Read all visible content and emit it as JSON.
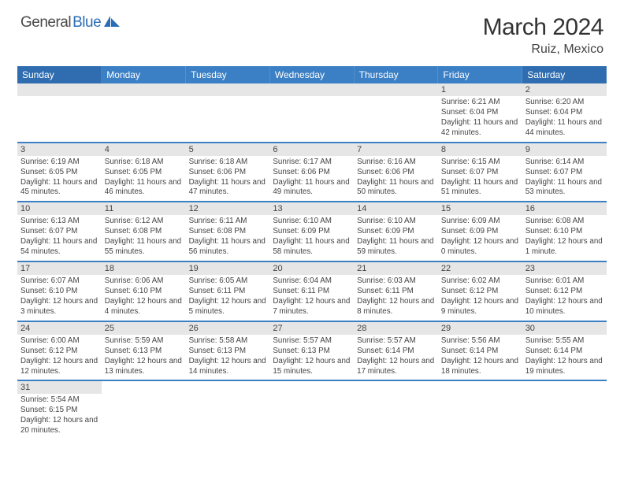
{
  "logo": {
    "part1": "General",
    "part2": "Blue"
  },
  "title": "March 2024",
  "location": "Ruiz, Mexico",
  "colors": {
    "header_bg": "#3b7fc4",
    "header_bg_weekend": "#2f6db0",
    "header_text": "#ffffff",
    "daynum_bg": "#e6e6e6",
    "row_border": "#3b7fc4",
    "text": "#444444",
    "logo_blue": "#2a6cb5"
  },
  "weekdays": [
    "Sunday",
    "Monday",
    "Tuesday",
    "Wednesday",
    "Thursday",
    "Friday",
    "Saturday"
  ],
  "weeks": [
    [
      null,
      null,
      null,
      null,
      null,
      {
        "n": "1",
        "sr": "6:21 AM",
        "ss": "6:04 PM",
        "dl": "11 hours and 42 minutes."
      },
      {
        "n": "2",
        "sr": "6:20 AM",
        "ss": "6:04 PM",
        "dl": "11 hours and 44 minutes."
      }
    ],
    [
      {
        "n": "3",
        "sr": "6:19 AM",
        "ss": "6:05 PM",
        "dl": "11 hours and 45 minutes."
      },
      {
        "n": "4",
        "sr": "6:18 AM",
        "ss": "6:05 PM",
        "dl": "11 hours and 46 minutes."
      },
      {
        "n": "5",
        "sr": "6:18 AM",
        "ss": "6:06 PM",
        "dl": "11 hours and 47 minutes."
      },
      {
        "n": "6",
        "sr": "6:17 AM",
        "ss": "6:06 PM",
        "dl": "11 hours and 49 minutes."
      },
      {
        "n": "7",
        "sr": "6:16 AM",
        "ss": "6:06 PM",
        "dl": "11 hours and 50 minutes."
      },
      {
        "n": "8",
        "sr": "6:15 AM",
        "ss": "6:07 PM",
        "dl": "11 hours and 51 minutes."
      },
      {
        "n": "9",
        "sr": "6:14 AM",
        "ss": "6:07 PM",
        "dl": "11 hours and 53 minutes."
      }
    ],
    [
      {
        "n": "10",
        "sr": "6:13 AM",
        "ss": "6:07 PM",
        "dl": "11 hours and 54 minutes."
      },
      {
        "n": "11",
        "sr": "6:12 AM",
        "ss": "6:08 PM",
        "dl": "11 hours and 55 minutes."
      },
      {
        "n": "12",
        "sr": "6:11 AM",
        "ss": "6:08 PM",
        "dl": "11 hours and 56 minutes."
      },
      {
        "n": "13",
        "sr": "6:10 AM",
        "ss": "6:09 PM",
        "dl": "11 hours and 58 minutes."
      },
      {
        "n": "14",
        "sr": "6:10 AM",
        "ss": "6:09 PM",
        "dl": "11 hours and 59 minutes."
      },
      {
        "n": "15",
        "sr": "6:09 AM",
        "ss": "6:09 PM",
        "dl": "12 hours and 0 minutes."
      },
      {
        "n": "16",
        "sr": "6:08 AM",
        "ss": "6:10 PM",
        "dl": "12 hours and 1 minute."
      }
    ],
    [
      {
        "n": "17",
        "sr": "6:07 AM",
        "ss": "6:10 PM",
        "dl": "12 hours and 3 minutes."
      },
      {
        "n": "18",
        "sr": "6:06 AM",
        "ss": "6:10 PM",
        "dl": "12 hours and 4 minutes."
      },
      {
        "n": "19",
        "sr": "6:05 AM",
        "ss": "6:11 PM",
        "dl": "12 hours and 5 minutes."
      },
      {
        "n": "20",
        "sr": "6:04 AM",
        "ss": "6:11 PM",
        "dl": "12 hours and 7 minutes."
      },
      {
        "n": "21",
        "sr": "6:03 AM",
        "ss": "6:11 PM",
        "dl": "12 hours and 8 minutes."
      },
      {
        "n": "22",
        "sr": "6:02 AM",
        "ss": "6:12 PM",
        "dl": "12 hours and 9 minutes."
      },
      {
        "n": "23",
        "sr": "6:01 AM",
        "ss": "6:12 PM",
        "dl": "12 hours and 10 minutes."
      }
    ],
    [
      {
        "n": "24",
        "sr": "6:00 AM",
        "ss": "6:12 PM",
        "dl": "12 hours and 12 minutes."
      },
      {
        "n": "25",
        "sr": "5:59 AM",
        "ss": "6:13 PM",
        "dl": "12 hours and 13 minutes."
      },
      {
        "n": "26",
        "sr": "5:58 AM",
        "ss": "6:13 PM",
        "dl": "12 hours and 14 minutes."
      },
      {
        "n": "27",
        "sr": "5:57 AM",
        "ss": "6:13 PM",
        "dl": "12 hours and 15 minutes."
      },
      {
        "n": "28",
        "sr": "5:57 AM",
        "ss": "6:14 PM",
        "dl": "12 hours and 17 minutes."
      },
      {
        "n": "29",
        "sr": "5:56 AM",
        "ss": "6:14 PM",
        "dl": "12 hours and 18 minutes."
      },
      {
        "n": "30",
        "sr": "5:55 AM",
        "ss": "6:14 PM",
        "dl": "12 hours and 19 minutes."
      }
    ],
    [
      {
        "n": "31",
        "sr": "5:54 AM",
        "ss": "6:15 PM",
        "dl": "12 hours and 20 minutes."
      },
      null,
      null,
      null,
      null,
      null,
      null
    ]
  ],
  "labels": {
    "sunrise": "Sunrise: ",
    "sunset": "Sunset: ",
    "daylight": "Daylight: "
  }
}
